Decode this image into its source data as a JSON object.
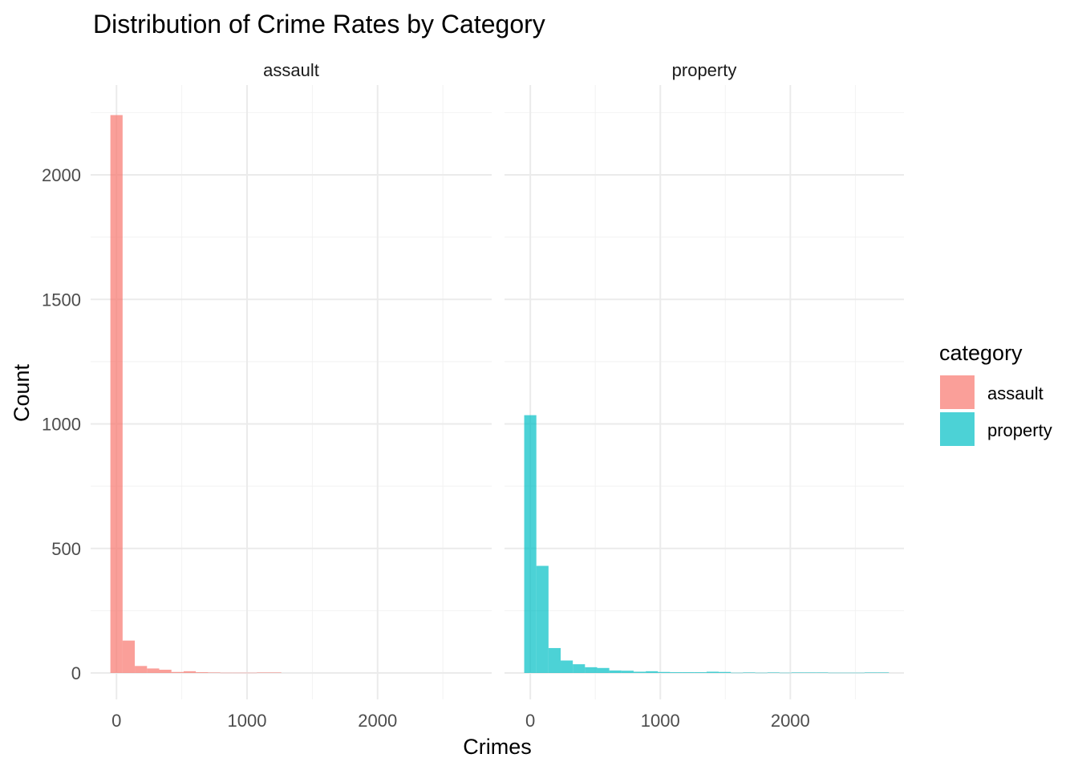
{
  "chart_data": {
    "type": "bar",
    "subtype": "histogram",
    "title": "Distribution of Crime Rates by Category",
    "xlabel": "Crimes",
    "ylabel": "Count",
    "xlim": [
      -60,
      2850
    ],
    "ylim": [
      -100,
      2280
    ],
    "x_ticks": [
      0,
      1000,
      2000
    ],
    "y_ticks": [
      0,
      500,
      1000,
      1500,
      2000
    ],
    "bin_width": 93.5,
    "grid": true,
    "legend": {
      "title": "category",
      "position": "right",
      "entries": [
        {
          "label": "assault",
          "color": "#F8766D"
        },
        {
          "label": "property",
          "color": "#00BFC4"
        }
      ]
    },
    "facets": [
      {
        "label": "assault",
        "color": "#F8766D",
        "bins": [
          {
            "x0": -46.75,
            "count": 2240
          },
          {
            "x0": 46.75,
            "count": 130
          },
          {
            "x0": 140.25,
            "count": 28
          },
          {
            "x0": 233.75,
            "count": 18
          },
          {
            "x0": 327.25,
            "count": 13
          },
          {
            "x0": 420.75,
            "count": 4
          },
          {
            "x0": 514.25,
            "count": 7
          },
          {
            "x0": 607.75,
            "count": 3
          },
          {
            "x0": 701.25,
            "count": 2
          },
          {
            "x0": 794.75,
            "count": 1
          },
          {
            "x0": 888.25,
            "count": 1
          },
          {
            "x0": 981.75,
            "count": 1
          },
          {
            "x0": 1075.25,
            "count": 2
          },
          {
            "x0": 1168.75,
            "count": 2
          }
        ]
      },
      {
        "label": "property",
        "color": "#00BFC4",
        "bins": [
          {
            "x0": -46.75,
            "count": 1035
          },
          {
            "x0": 46.75,
            "count": 430
          },
          {
            "x0": 140.25,
            "count": 100
          },
          {
            "x0": 233.75,
            "count": 50
          },
          {
            "x0": 327.25,
            "count": 35
          },
          {
            "x0": 420.75,
            "count": 23
          },
          {
            "x0": 514.25,
            "count": 20
          },
          {
            "x0": 607.75,
            "count": 10
          },
          {
            "x0": 701.25,
            "count": 9
          },
          {
            "x0": 794.75,
            "count": 5
          },
          {
            "x0": 888.25,
            "count": 7
          },
          {
            "x0": 981.75,
            "count": 4
          },
          {
            "x0": 1075.25,
            "count": 3
          },
          {
            "x0": 1168.75,
            "count": 3
          },
          {
            "x0": 1262.25,
            "count": 3
          },
          {
            "x0": 1355.75,
            "count": 5
          },
          {
            "x0": 1449.25,
            "count": 4
          },
          {
            "x0": 1542.75,
            "count": 1
          },
          {
            "x0": 1636.25,
            "count": 2
          },
          {
            "x0": 1729.75,
            "count": 1
          },
          {
            "x0": 1823.25,
            "count": 2
          },
          {
            "x0": 1916.75,
            "count": 1
          },
          {
            "x0": 2010.25,
            "count": 2
          },
          {
            "x0": 2103.75,
            "count": 2
          },
          {
            "x0": 2197.25,
            "count": 2
          },
          {
            "x0": 2290.75,
            "count": 1
          },
          {
            "x0": 2384.25,
            "count": 1
          },
          {
            "x0": 2477.75,
            "count": 1
          },
          {
            "x0": 2571.25,
            "count": 2
          },
          {
            "x0": 2664.75,
            "count": 2
          }
        ]
      }
    ]
  }
}
